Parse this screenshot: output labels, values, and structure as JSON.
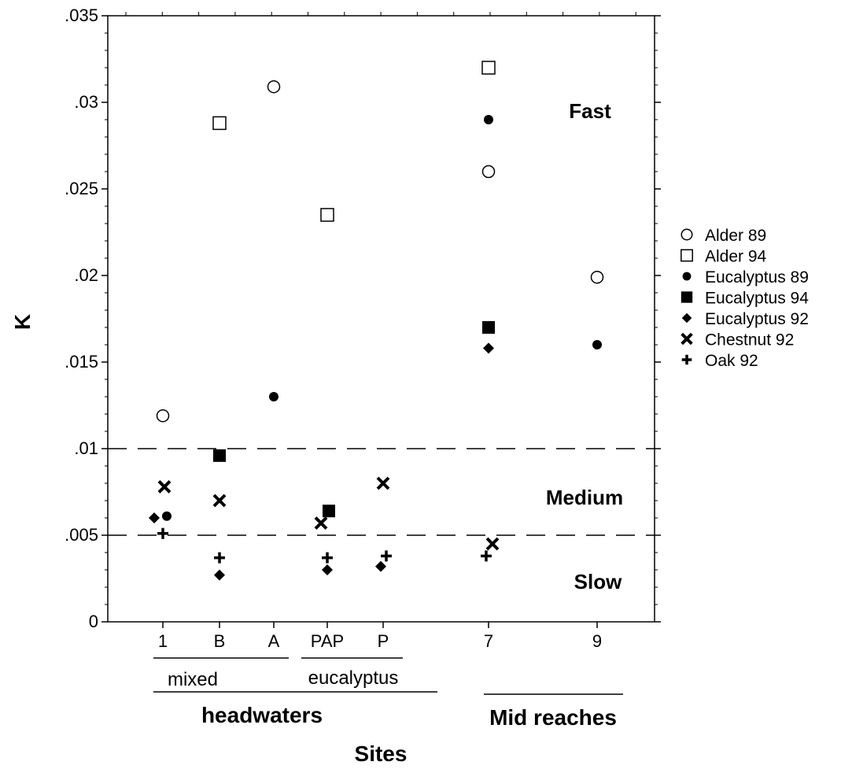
{
  "chart_data": {
    "type": "scatter",
    "xlabel": "Sites",
    "ylabel": "K",
    "ylim": [
      0,
      0.035
    ],
    "y_ticks": [
      {
        "value": 0,
        "label": "0"
      },
      {
        "value": 0.005,
        "label": ".005"
      },
      {
        "value": 0.01,
        "label": ".01"
      },
      {
        "value": 0.015,
        "label": ".015"
      },
      {
        "value": 0.02,
        "label": ".02"
      },
      {
        "value": 0.025,
        "label": ".025"
      },
      {
        "value": 0.03,
        "label": ".03"
      },
      {
        "value": 0.035,
        "label": ".035"
      }
    ],
    "categories": [
      "1",
      "B",
      "A",
      "PAP",
      "P",
      "7",
      "9"
    ],
    "groups": {
      "mixed": "mixed",
      "eucalyptus": "eucalyptus",
      "headwaters": "headwaters",
      "mid_reaches": "Mid reaches"
    },
    "zones": {
      "fast": "Fast",
      "medium": "Medium",
      "slow": "Slow"
    },
    "thresholds": [
      0.005,
      0.01
    ],
    "grid": false,
    "legend_position": "right",
    "series": [
      {
        "name": "Alder 89",
        "marker": "open-circle",
        "points": [
          {
            "x": "1",
            "y": 0.0119
          },
          {
            "x": "A",
            "y": 0.0309
          },
          {
            "x": "7",
            "y": 0.026
          },
          {
            "x": "9",
            "y": 0.0199
          }
        ]
      },
      {
        "name": "Alder 94",
        "marker": "open-square",
        "points": [
          {
            "x": "B",
            "y": 0.0288
          },
          {
            "x": "PAP",
            "y": 0.0235
          },
          {
            "x": "7",
            "y": 0.032
          }
        ]
      },
      {
        "name": "Eucalyptus 89",
        "marker": "filled-circle",
        "points": [
          {
            "x": "1",
            "y": 0.0061
          },
          {
            "x": "A",
            "y": 0.013
          },
          {
            "x": "7",
            "y": 0.029
          },
          {
            "x": "9",
            "y": 0.016
          }
        ]
      },
      {
        "name": "Eucalyptus 94",
        "marker": "filled-square",
        "points": [
          {
            "x": "B",
            "y": 0.0096
          },
          {
            "x": "PAP",
            "y": 0.0064
          },
          {
            "x": "7",
            "y": 0.017
          }
        ]
      },
      {
        "name": "Eucalyptus 92",
        "marker": "filled-diamond",
        "points": [
          {
            "x": "1",
            "y": 0.006
          },
          {
            "x": "B",
            "y": 0.0027
          },
          {
            "x": "PAP",
            "y": 0.003
          },
          {
            "x": "P",
            "y": 0.0032
          },
          {
            "x": "7",
            "y": 0.0158
          }
        ]
      },
      {
        "name": "Chestnut 92",
        "marker": "x-cross",
        "points": [
          {
            "x": "1",
            "y": 0.0078
          },
          {
            "x": "B",
            "y": 0.007
          },
          {
            "x": "PAP",
            "y": 0.0057
          },
          {
            "x": "P",
            "y": 0.008
          },
          {
            "x": "7",
            "y": 0.0045
          }
        ]
      },
      {
        "name": "Oak 92",
        "marker": "plus",
        "points": [
          {
            "x": "1",
            "y": 0.0051
          },
          {
            "x": "B",
            "y": 0.0037
          },
          {
            "x": "PAP",
            "y": 0.0037
          },
          {
            "x": "P",
            "y": 0.0038
          },
          {
            "x": "7",
            "y": 0.0038
          }
        ]
      }
    ]
  }
}
